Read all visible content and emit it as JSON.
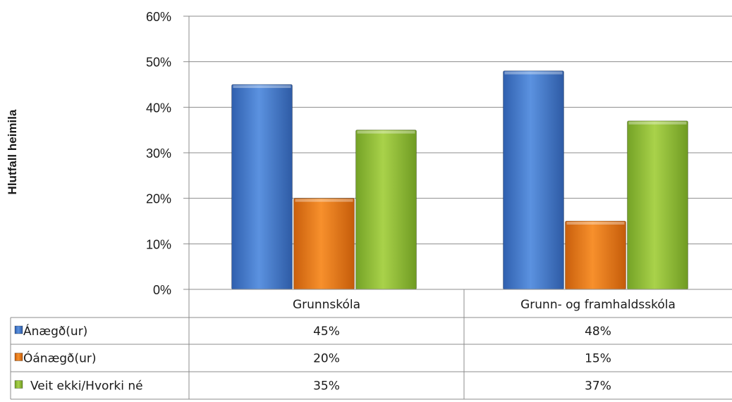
{
  "chart_data": {
    "type": "bar",
    "ylabel": "Hlutfall heimila",
    "xlabel": "",
    "ylim": [
      0,
      60
    ],
    "yticks": [
      "0%",
      "10%",
      "20%",
      "30%",
      "40%",
      "50%",
      "60%"
    ],
    "categories": [
      "Grunnskóla",
      "Grunn- og framhaldsskóla"
    ],
    "series": [
      {
        "name": "Ánægð(ur)",
        "color": "#4a7fd0",
        "values": [
          45,
          48
        ],
        "labels": [
          "45%",
          "48%"
        ]
      },
      {
        "name": "Óánægð(ur)",
        "color": "#ef7d1a",
        "values": [
          20,
          15
        ],
        "labels": [
          "20%",
          "15%"
        ]
      },
      {
        "name": "Veit ekki/Hvorki né",
        "color": "#9ac53b",
        "values": [
          35,
          37
        ],
        "labels": [
          "35%",
          "37%"
        ]
      }
    ],
    "grid": true,
    "legend": "data-table-left"
  }
}
